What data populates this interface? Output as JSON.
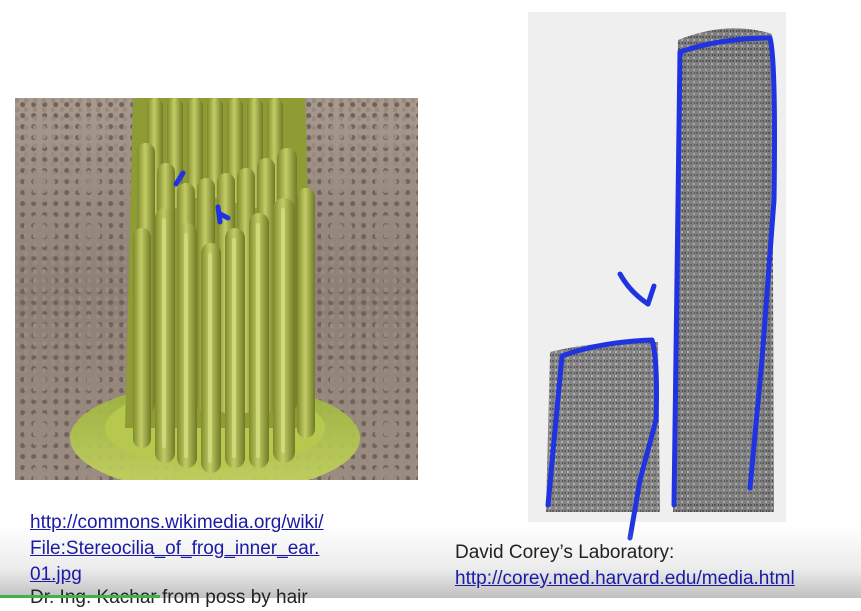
{
  "left_figure": {
    "caption_link_line1": "http://commons.wikimedia.org/wiki/",
    "caption_link_line2": "File:Stereocilia_of_frog_inner_ear.",
    "caption_link_line3": "01.jpg",
    "caption_cutoff": "Dr. Ing. Kachar from poss by hair"
  },
  "right_figure": {
    "credit": "David Corey’s Laboratory:",
    "link": "http://corey.med.harvard.edu/media.html"
  },
  "colors": {
    "ink": "#1f34e0",
    "link": "#1a1aa6",
    "stereocilia": "#a9b54a",
    "progress": "#3fb24a"
  }
}
